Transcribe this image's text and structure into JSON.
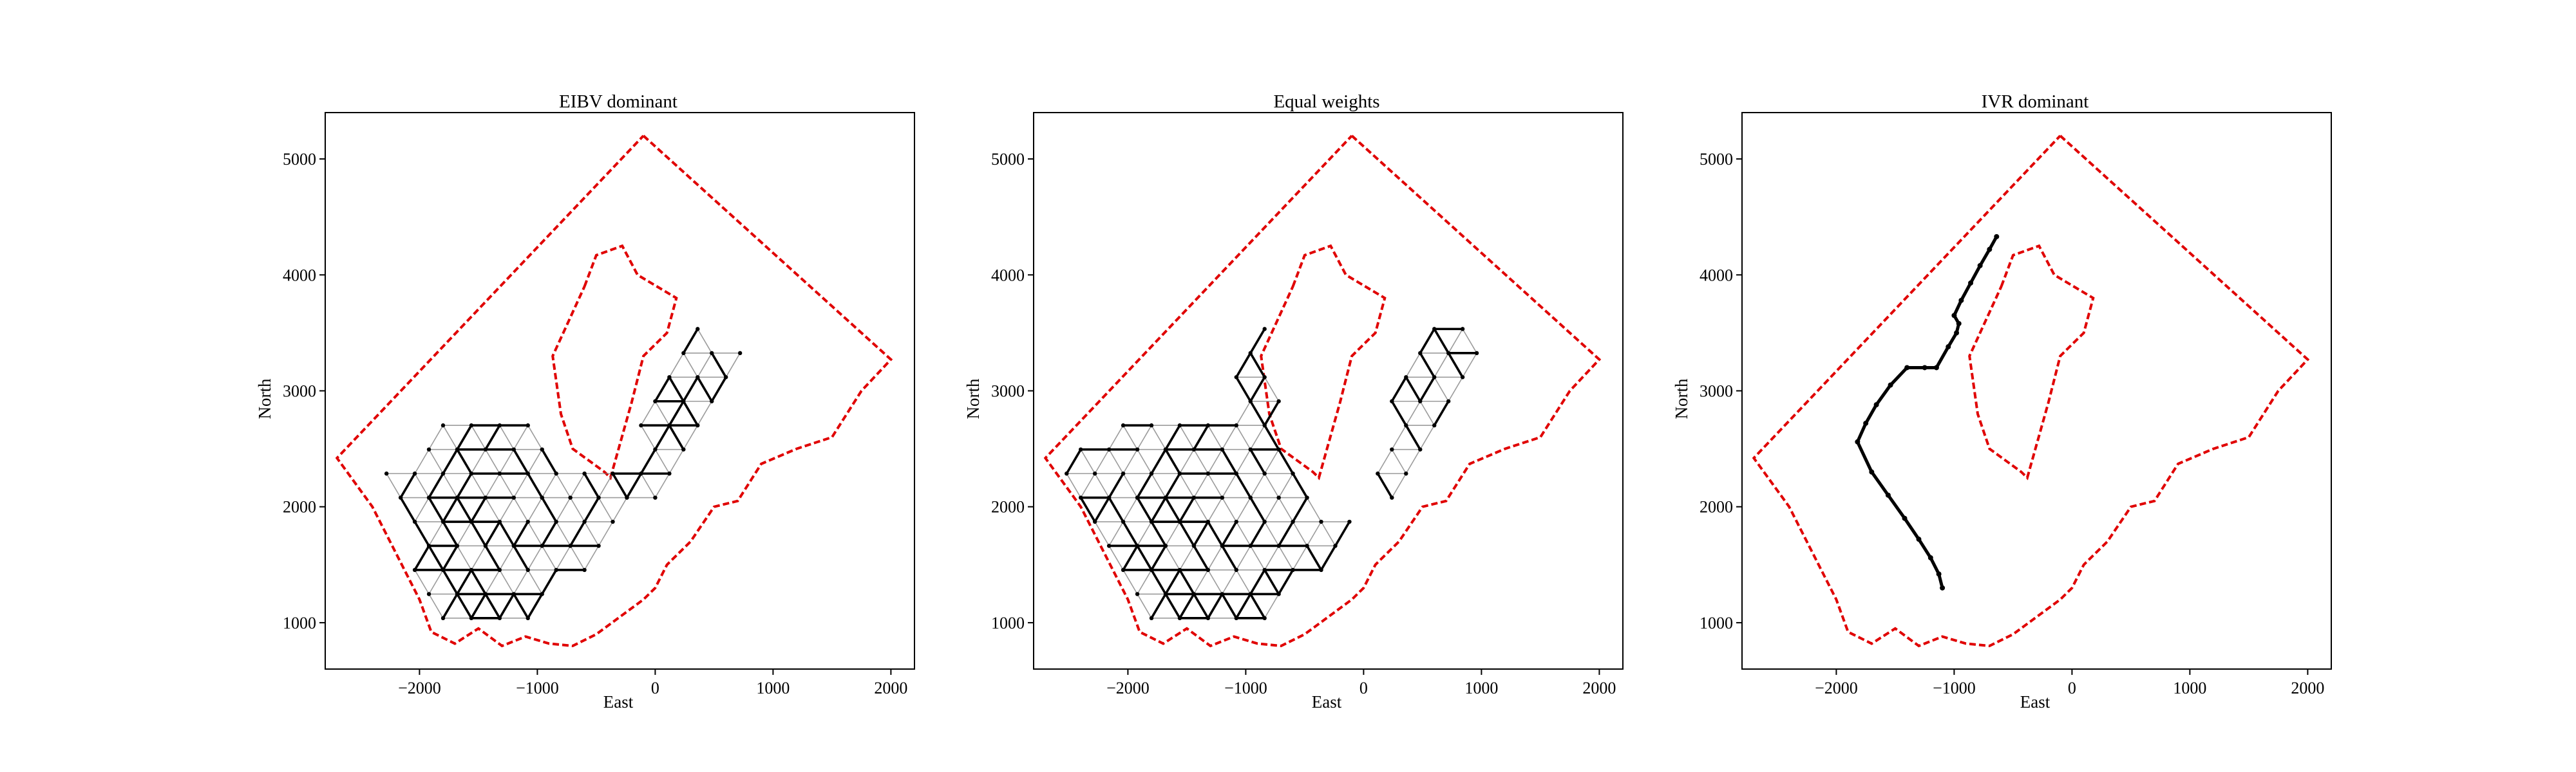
{
  "chart_data": [
    {
      "type": "line",
      "title": "EIBV dominant",
      "xlabel": "East",
      "ylabel": "North",
      "xlim": [
        -2800,
        2200
      ],
      "ylim": [
        600,
        5400
      ],
      "xticks": [
        -2000,
        -1000,
        0,
        1000,
        2000
      ],
      "yticks": [
        1000,
        2000,
        3000,
        4000,
        5000
      ],
      "xtick_labels": [
        "−2000",
        "−1000",
        "0",
        "1000",
        "2000"
      ],
      "ytick_labels": [
        "1000",
        "2000",
        "3000",
        "4000",
        "5000"
      ],
      "grid": false,
      "series": [
        {
          "role": "operational-area-boundary",
          "color": "#e00000",
          "x": [
            -100,
            2000,
            1750,
            1500,
            1200,
            900,
            700,
            500,
            300,
            100,
            0,
            -100,
            -300,
            -500,
            -700,
            -900,
            -1100,
            -1300,
            -1500,
            -1700,
            -1900,
            -2000,
            -2200,
            -2400,
            -2700,
            -100
          ],
          "y": [
            5200,
            3270,
            3000,
            2600,
            2500,
            2370,
            2050,
            2000,
            1700,
            1500,
            1300,
            1200,
            1050,
            900,
            800,
            820,
            880,
            800,
            950,
            820,
            920,
            1200,
            1600,
            2000,
            2420,
            5200
          ]
        },
        {
          "role": "obstacle-boundary",
          "color": "#e00000",
          "x": [
            -600,
            -500,
            -280,
            -150,
            180,
            100,
            -100,
            -200,
            -380,
            -430,
            -700,
            -800,
            -870,
            -600
          ],
          "y": [
            3900,
            4170,
            4250,
            4000,
            3800,
            3500,
            3300,
            2900,
            2250,
            2300,
            2500,
            2800,
            3300,
            3900
          ]
        },
        {
          "role": "explored-graph-region",
          "color": "#000000",
          "x": [
            -2300,
            -2000,
            -1800,
            -1400,
            -1000,
            -700,
            -300,
            0,
            300,
            600,
            820,
            700,
            300,
            100,
            -200,
            -500,
            -800,
            -1100,
            -1400,
            -1700,
            -2000,
            -2300
          ],
          "y": [
            2300,
            2600,
            2800,
            2800,
            2750,
            2400,
            2300,
            3000,
            3600,
            3500,
            3400,
            2900,
            2500,
            2200,
            1800,
            1500,
            1300,
            1000,
            920,
            950,
            1100,
            2300
          ]
        }
      ]
    },
    {
      "type": "line",
      "title": "Equal weights",
      "xlabel": "East",
      "ylabel": "North",
      "xlim": [
        -2800,
        2200
      ],
      "ylim": [
        600,
        5400
      ],
      "xticks": [
        -2000,
        -1000,
        0,
        1000,
        2000
      ],
      "yticks": [
        1000,
        2000,
        3000,
        4000,
        5000
      ],
      "xtick_labels": [
        "−2000",
        "−1000",
        "0",
        "1000",
        "2000"
      ],
      "ytick_labels": [
        "1000",
        "2000",
        "3000",
        "4000",
        "5000"
      ],
      "grid": false,
      "series": [
        {
          "role": "operational-area-boundary",
          "color": "#e00000",
          "x": [
            -100,
            2000,
            1750,
            1500,
            1200,
            900,
            700,
            500,
            300,
            100,
            0,
            -100,
            -300,
            -500,
            -700,
            -900,
            -1100,
            -1300,
            -1500,
            -1700,
            -1900,
            -2000,
            -2200,
            -2400,
            -2700,
            -100
          ],
          "y": [
            5200,
            3270,
            3000,
            2600,
            2500,
            2370,
            2050,
            2000,
            1700,
            1500,
            1300,
            1200,
            1050,
            900,
            800,
            820,
            880,
            800,
            950,
            820,
            920,
            1200,
            1600,
            2000,
            2420,
            5200
          ]
        },
        {
          "role": "obstacle-boundary",
          "color": "#e00000",
          "x": [
            -600,
            -500,
            -280,
            -150,
            180,
            100,
            -100,
            -200,
            -380,
            -430,
            -700,
            -800,
            -870,
            -600
          ],
          "y": [
            3900,
            4170,
            4250,
            4000,
            3800,
            3500,
            3300,
            2900,
            2250,
            2300,
            2500,
            2800,
            3300,
            3900
          ]
        },
        {
          "role": "explored-graph-region",
          "color": "#000000",
          "x": [
            -2600,
            -2100,
            -1600,
            -1200,
            -900,
            -700,
            -500,
            -300,
            0,
            200,
            500,
            800,
            1000,
            900,
            500,
            300,
            100,
            -200,
            -500,
            -800,
            -1100,
            -1400,
            -1700,
            -2000,
            -2300,
            -2600
          ],
          "y": [
            2400,
            2700,
            2800,
            2750,
            3900,
            3100,
            2300,
            2000,
            2000,
            3000,
            3500,
            3700,
            3500,
            2900,
            2200,
            2000,
            1900,
            1600,
            1300,
            1000,
            920,
            850,
            950,
            1100,
            1700,
            2400
          ]
        }
      ]
    },
    {
      "type": "line",
      "title": "IVR dominant",
      "xlabel": "East",
      "ylabel": "North",
      "xlim": [
        -2800,
        2200
      ],
      "ylim": [
        600,
        5400
      ],
      "xticks": [
        -2000,
        -1000,
        0,
        1000,
        2000
      ],
      "yticks": [
        1000,
        2000,
        3000,
        4000,
        5000
      ],
      "xtick_labels": [
        "−2000",
        "−1000",
        "0",
        "1000",
        "2000"
      ],
      "ytick_labels": [
        "1000",
        "2000",
        "3000",
        "4000",
        "5000"
      ],
      "grid": false,
      "series": [
        {
          "role": "operational-area-boundary",
          "color": "#e00000",
          "x": [
            -100,
            2000,
            1750,
            1500,
            1200,
            900,
            700,
            500,
            300,
            100,
            0,
            -100,
            -300,
            -500,
            -700,
            -900,
            -1100,
            -1300,
            -1500,
            -1700,
            -1900,
            -2000,
            -2200,
            -2400,
            -2700,
            -100
          ],
          "y": [
            5200,
            3270,
            3000,
            2600,
            2500,
            2370,
            2050,
            2000,
            1700,
            1500,
            1300,
            1200,
            1050,
            900,
            800,
            820,
            880,
            800,
            950,
            820,
            920,
            1200,
            1600,
            2000,
            2420,
            5200
          ]
        },
        {
          "role": "obstacle-boundary",
          "color": "#e00000",
          "x": [
            -600,
            -500,
            -280,
            -150,
            180,
            100,
            -100,
            -200,
            -380,
            -430,
            -700,
            -800,
            -870,
            -600
          ],
          "y": [
            3900,
            4170,
            4250,
            4000,
            3800,
            3500,
            3300,
            2900,
            2250,
            2300,
            2500,
            2800,
            3300,
            3900
          ]
        },
        {
          "role": "vehicle-path",
          "color": "#000000",
          "x": [
            -1100,
            -1130,
            -1200,
            -1300,
            -1420,
            -1560,
            -1700,
            -1820,
            -1750,
            -1660,
            -1540,
            -1400,
            -1250,
            -1150,
            -1050,
            -980,
            -960,
            -1000,
            -940,
            -860,
            -780,
            -700,
            -640
          ],
          "y": [
            1300,
            1420,
            1560,
            1720,
            1900,
            2100,
            2300,
            2560,
            2720,
            2880,
            3050,
            3200,
            3200,
            3200,
            3380,
            3500,
            3580,
            3650,
            3780,
            3930,
            4080,
            4220,
            4330
          ]
        }
      ]
    }
  ]
}
